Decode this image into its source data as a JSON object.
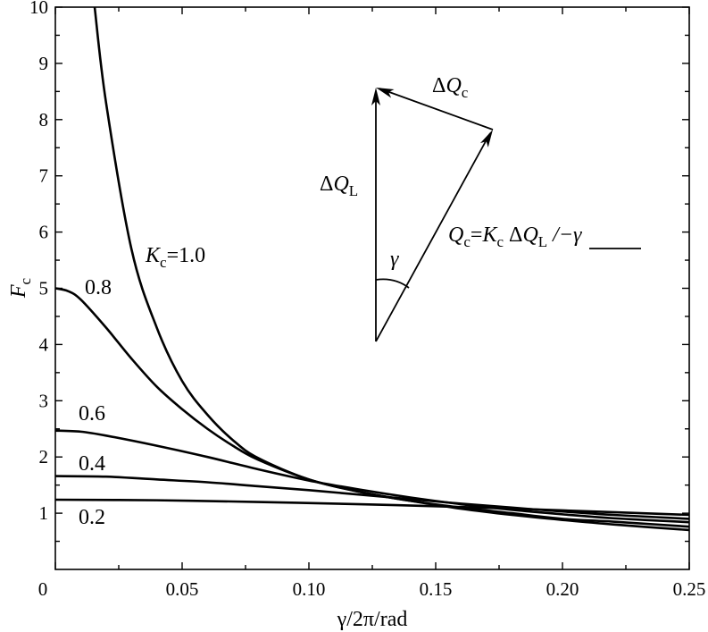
{
  "chart_data": {
    "type": "line",
    "xlabel": "γ/2π/rad",
    "ylabel": "Fc",
    "xlim": [
      0,
      0.25
    ],
    "ylim": [
      0,
      10
    ],
    "xticks": [
      "0",
      "0.05",
      "0.10",
      "0.15",
      "0.20",
      "0.25"
    ],
    "yticks": [
      "1",
      "2",
      "3",
      "4",
      "5",
      "6",
      "7",
      "8",
      "9",
      "10"
    ],
    "grid": false,
    "series": [
      {
        "name": "Kc=1.0",
        "x": [
          0.0155,
          0.02,
          0.03,
          0.04,
          0.05,
          0.06,
          0.07,
          0.08,
          0.1,
          0.12,
          0.14,
          0.16,
          0.18,
          0.2,
          0.22,
          0.25
        ],
        "y": [
          10.0,
          8.3,
          5.7,
          4.3,
          3.35,
          2.75,
          2.3,
          1.98,
          1.6,
          1.38,
          1.22,
          1.08,
          0.97,
          0.88,
          0.8,
          0.7
        ]
      },
      {
        "name": "0.8",
        "x": [
          0,
          0.005,
          0.01,
          0.02,
          0.03,
          0.04,
          0.05,
          0.06,
          0.07,
          0.08,
          0.1,
          0.12,
          0.14,
          0.16,
          0.18,
          0.2,
          0.22,
          0.25
        ],
        "y": [
          5.0,
          4.95,
          4.8,
          4.3,
          3.75,
          3.25,
          2.85,
          2.5,
          2.2,
          1.95,
          1.6,
          1.38,
          1.22,
          1.1,
          1.0,
          0.9,
          0.85,
          0.76
        ]
      },
      {
        "name": "0.6",
        "x": [
          0,
          0.01,
          0.02,
          0.04,
          0.06,
          0.08,
          0.1,
          0.12,
          0.14,
          0.16,
          0.18,
          0.2,
          0.22,
          0.25
        ],
        "y": [
          2.47,
          2.45,
          2.38,
          2.2,
          2.0,
          1.78,
          1.58,
          1.42,
          1.28,
          1.16,
          1.06,
          0.98,
          0.91,
          0.84
        ]
      },
      {
        "name": "0.4",
        "x": [
          0,
          0.02,
          0.04,
          0.06,
          0.08,
          0.1,
          0.12,
          0.14,
          0.16,
          0.18,
          0.2,
          0.22,
          0.25
        ],
        "y": [
          1.66,
          1.65,
          1.6,
          1.55,
          1.48,
          1.41,
          1.33,
          1.25,
          1.17,
          1.1,
          1.03,
          0.97,
          0.9
        ]
      },
      {
        "name": "0.2",
        "x": [
          0,
          0.04,
          0.08,
          0.12,
          0.16,
          0.2,
          0.25
        ],
        "y": [
          1.24,
          1.23,
          1.2,
          1.16,
          1.11,
          1.05,
          0.97
        ]
      }
    ],
    "annotations": {
      "vector_dQL": {
        "main": "ΔQ",
        "sub": "L"
      },
      "vector_dQc": {
        "main": "ΔQ",
        "sub": "c"
      },
      "vector_Qc": {
        "main": "Q",
        "sub": "c",
        "eq": "=K",
        "sub2": "c",
        "mid": " ΔQ",
        "sub3": "L",
        "angle": "/−γ"
      },
      "angle_label": "γ"
    }
  }
}
